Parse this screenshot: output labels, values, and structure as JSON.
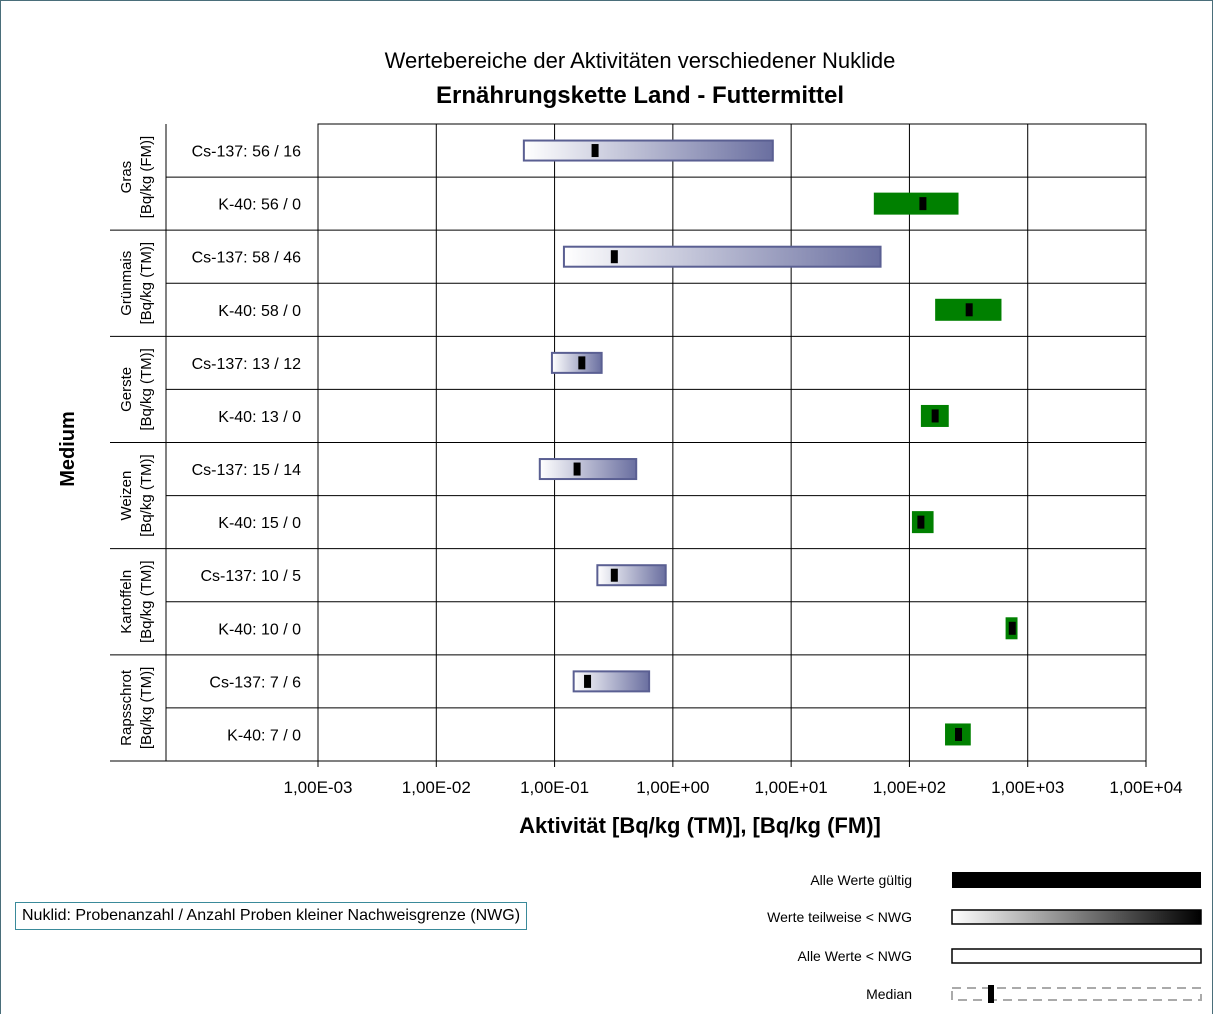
{
  "chart_data": {
    "type": "bar",
    "orientation": "horizontal-range",
    "title": "Wertebereiche der Aktivitäten verschiedener Nuklide",
    "subtitle": "Ernährungskette Land - Futtermittel",
    "xlabel": "Aktivität [Bq/kg (TM)], [Bq/kg (FM)]",
    "ylabel": "Medium",
    "x_scale": "log",
    "xlim": [
      0.001,
      10000
    ],
    "x_ticks": [
      "1,00E-03",
      "1,00E-02",
      "1,00E-01",
      "1,00E+00",
      "1,00E+01",
      "1,00E+02",
      "1,00E+03",
      "1,00E+04"
    ],
    "grid": true,
    "groups": [
      {
        "medium": "Gras",
        "unit": "[Bq/kg (FM)]",
        "rows": [
          {
            "label": "Cs-137: 56 / 16",
            "nuclide": "Cs-137",
            "min": 0.055,
            "max": 7.0,
            "median": 0.22,
            "style": "partial"
          },
          {
            "label": "K-40: 56 / 0",
            "nuclide": "K-40",
            "min": 50,
            "max": 260,
            "median": 130,
            "style": "valid"
          }
        ]
      },
      {
        "medium": "Grünmais",
        "unit": "[Bq/kg (TM)]",
        "rows": [
          {
            "label": "Cs-137: 58 / 46",
            "nuclide": "Cs-137",
            "min": 0.12,
            "max": 57,
            "median": 0.32,
            "style": "partial"
          },
          {
            "label": "K-40: 58 / 0",
            "nuclide": "K-40",
            "min": 165,
            "max": 600,
            "median": 320,
            "style": "valid"
          }
        ]
      },
      {
        "medium": "Gerste",
        "unit": "[Bq/kg (TM)]",
        "rows": [
          {
            "label": "Cs-137: 13 / 12",
            "nuclide": "Cs-137",
            "min": 0.095,
            "max": 0.25,
            "median": 0.17,
            "style": "partial"
          },
          {
            "label": "K-40: 13 / 0",
            "nuclide": "K-40",
            "min": 125,
            "max": 215,
            "median": 165,
            "style": "valid"
          }
        ]
      },
      {
        "medium": "Weizen",
        "unit": "[Bq/kg (TM)]",
        "rows": [
          {
            "label": "Cs-137: 15 / 14",
            "nuclide": "Cs-137",
            "min": 0.075,
            "max": 0.49,
            "median": 0.155,
            "style": "partial"
          },
          {
            "label": "K-40: 15 / 0",
            "nuclide": "K-40",
            "min": 105,
            "max": 160,
            "median": 125,
            "style": "valid"
          }
        ]
      },
      {
        "medium": "Kartoffeln",
        "unit": "[Bq/kg (TM)]",
        "rows": [
          {
            "label": "Cs-137: 10 / 5",
            "nuclide": "Cs-137",
            "min": 0.23,
            "max": 0.87,
            "median": 0.32,
            "style": "partial"
          },
          {
            "label": "K-40: 10 / 0",
            "nuclide": "K-40",
            "min": 650,
            "max": 820,
            "median": 740,
            "style": "valid"
          }
        ]
      },
      {
        "medium": "Rapsschrot",
        "unit": "[Bq/kg (TM)]",
        "rows": [
          {
            "label": "Cs-137: 7 / 6",
            "nuclide": "Cs-137",
            "min": 0.145,
            "max": 0.63,
            "median": 0.19,
            "style": "partial"
          },
          {
            "label": "K-40: 7 / 0",
            "nuclide": "K-40",
            "min": 200,
            "max": 330,
            "median": 260,
            "style": "valid"
          }
        ]
      }
    ],
    "legend": [
      {
        "label": "Alle Werte gültig",
        "style": "valid"
      },
      {
        "label": "Werte teilweise < NWG",
        "style": "partial"
      },
      {
        "label": "Alle Werte < NWG",
        "style": "all_below"
      },
      {
        "label": "Median",
        "style": "median"
      }
    ],
    "legend_placement": "bottom-right",
    "colors": {
      "valid_bar": "#008000",
      "partial_gradient_end": "#6a6fa0",
      "median_mark": "#000000"
    }
  },
  "note": "Nuklid: Probenanzahl / Anzahl Proben kleiner Nachweisgrenze (NWG)"
}
